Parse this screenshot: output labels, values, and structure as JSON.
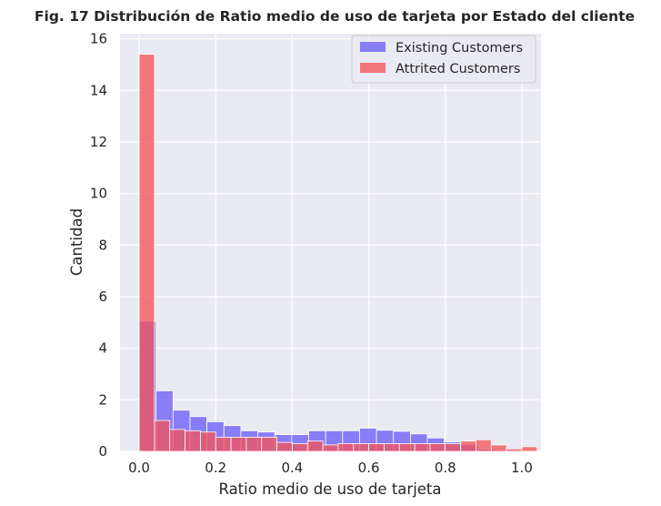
{
  "chart_data": {
    "type": "histogram",
    "title": "Fig. 17 Distribución de Ratio medio de uso de tarjeta por Estado del cliente",
    "xlabel": "Ratio medio de uso de tarjeta",
    "ylabel": "Cantidad",
    "xlim": [
      -0.05,
      1.05
    ],
    "ylim": [
      0,
      16.2
    ],
    "xticks": [
      "0.0",
      "0.2",
      "0.4",
      "0.6",
      "0.8",
      "1.0"
    ],
    "yticks": [
      "0",
      "2",
      "4",
      "6",
      "8",
      "10",
      "12",
      "14",
      "16"
    ],
    "grid": true,
    "legend_position": "top-right",
    "series": [
      {
        "name": "Existing Customers",
        "color": "#6a5ef7",
        "bin_start": 0.0,
        "bin_width": 0.0443,
        "values": [
          5.05,
          2.35,
          1.6,
          1.35,
          1.15,
          1.0,
          0.8,
          0.75,
          0.65,
          0.65,
          0.8,
          0.8,
          0.8,
          0.9,
          0.82,
          0.78,
          0.68,
          0.52,
          0.37,
          0.27,
          0.08,
          0.05
        ]
      },
      {
        "name": "Attrited Customers",
        "color": "#f2545b",
        "bin_start": 0.0,
        "bin_width": 0.04,
        "values": [
          15.4,
          1.2,
          0.85,
          0.8,
          0.75,
          0.55,
          0.55,
          0.55,
          0.55,
          0.35,
          0.3,
          0.4,
          0.25,
          0.3,
          0.3,
          0.3,
          0.3,
          0.3,
          0.3,
          0.3,
          0.3,
          0.4,
          0.45,
          0.25,
          0.1,
          0.18
        ]
      }
    ]
  }
}
